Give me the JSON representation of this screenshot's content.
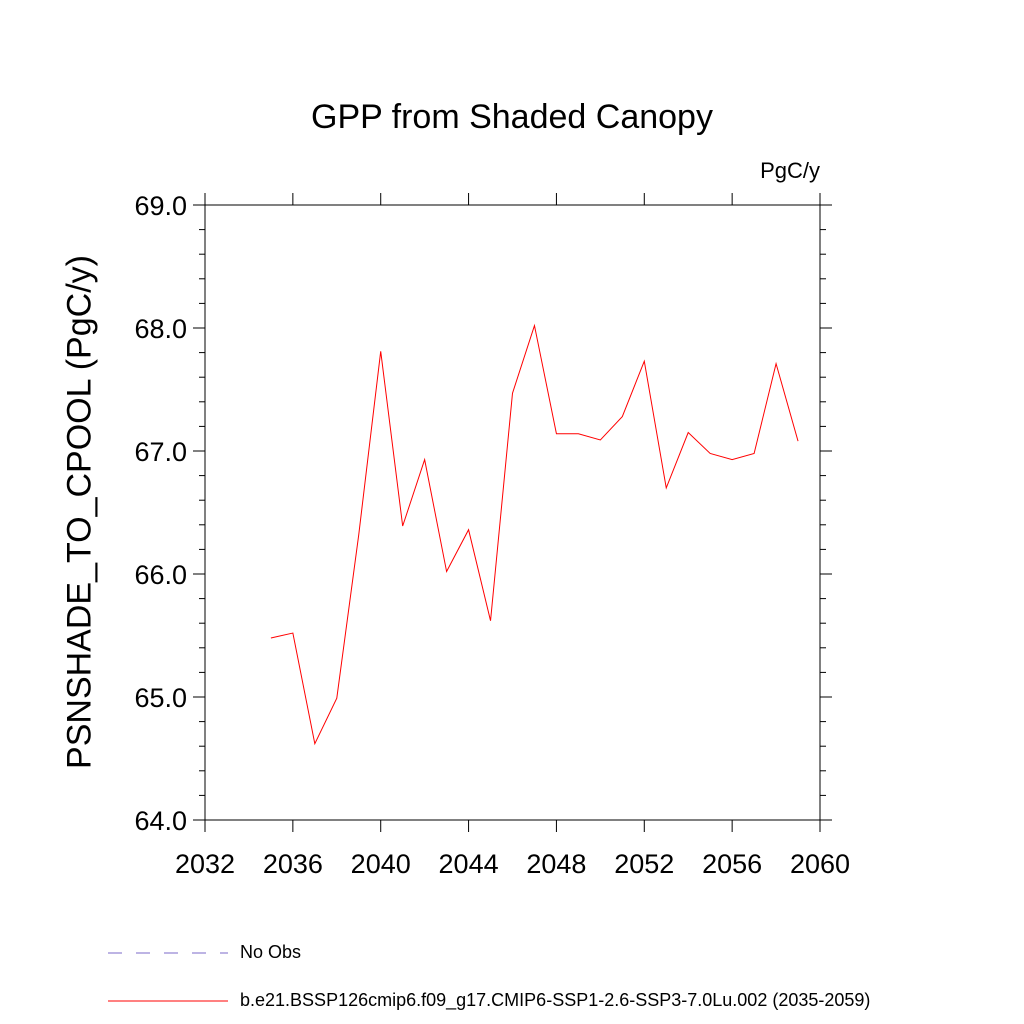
{
  "chart_data": {
    "type": "line",
    "title": "GPP from Shaded Canopy",
    "units_label": "PgC/y",
    "ylabel": "PSNSHADE_TO_CPOOL  (PgC/y)",
    "xlabel": "",
    "xlim": [
      2032,
      2060
    ],
    "ylim": [
      64.0,
      69.0
    ],
    "x_ticks": [
      2032,
      2036,
      2040,
      2044,
      2048,
      2052,
      2056,
      2060
    ],
    "x_tick_labels": [
      "2032",
      "2036",
      "2040",
      "2044",
      "2048",
      "2052",
      "2056",
      "2060"
    ],
    "y_ticks": [
      64.0,
      65.0,
      66.0,
      67.0,
      68.0,
      69.0
    ],
    "y_tick_labels": [
      "64.0",
      "65.0",
      "66.0",
      "67.0",
      "68.0",
      "69.0"
    ],
    "x": [
      2035,
      2036,
      2037,
      2038,
      2039,
      2040,
      2041,
      2042,
      2043,
      2044,
      2045,
      2046,
      2047,
      2048,
      2049,
      2050,
      2051,
      2052,
      2053,
      2054,
      2055,
      2056,
      2057,
      2058,
      2059
    ],
    "series": [
      {
        "name": "b.e21.BSSP126cmip6.f09_g17.CMIP6-SSP1-2.6-SSP3-7.0Lu.002 (2035-2059)",
        "color": "#ff0000",
        "values": [
          65.48,
          65.52,
          64.62,
          64.99,
          66.32,
          67.81,
          66.39,
          66.93,
          66.02,
          66.36,
          65.62,
          67.47,
          68.02,
          67.14,
          67.14,
          67.09,
          67.28,
          67.73,
          66.7,
          67.15,
          66.98,
          66.93,
          66.98,
          67.71,
          67.08
        ]
      }
    ],
    "legend": [
      {
        "label": "No Obs",
        "color": "#7b68c8",
        "style": "dashed"
      },
      {
        "label": "b.e21.BSSP126cmip6.f09_g17.CMIP6-SSP1-2.6-SSP3-7.0Lu.002 (2035-2059)",
        "color": "#ff0000",
        "style": "solid"
      }
    ],
    "legend_position": "bottom",
    "grid": false
  }
}
